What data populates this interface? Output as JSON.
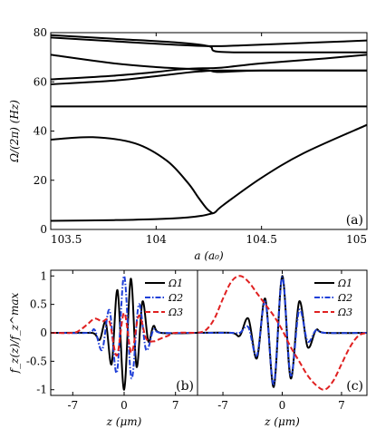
{
  "chart_data": [
    {
      "type": "line",
      "panel_label": "(a)",
      "xlabel": "a (a₀)",
      "ylabel": "Ω/(2π) (Hz)",
      "xlim": [
        103.5,
        105
      ],
      "ylim": [
        0,
        80
      ],
      "x_ticks": [
        "103.5",
        "104",
        "104.5",
        "105"
      ],
      "y_ticks": [
        "0",
        "20",
        "40",
        "60",
        "80"
      ],
      "series": [
        {
          "x": [
            103.5,
            103.8,
            104.0,
            104.15,
            104.22,
            104.26,
            104.28,
            104.32,
            104.5,
            104.7,
            105.0
          ],
          "y": [
            3.5,
            3.8,
            4.2,
            4.9,
            5.6,
            6.4,
            7.0,
            10.0,
            21.0,
            31.0,
            42.5
          ]
        },
        {
          "x": [
            103.5,
            103.7,
            103.9,
            104.05,
            104.15,
            104.2,
            104.24,
            104.27
          ],
          "y": [
            36.5,
            37.5,
            35.0,
            28.0,
            19.0,
            13.0,
            8.5,
            6.4
          ]
        },
        {
          "x": [
            103.5,
            105.0
          ],
          "y": [
            50.0,
            50.0
          ]
        },
        {
          "x": [
            103.5,
            103.8,
            104.0,
            104.15,
            104.22,
            104.26,
            104.3,
            104.5,
            105.0
          ],
          "y": [
            59.0,
            60.5,
            62.3,
            63.8,
            64.3,
            64.5,
            64.6,
            64.6,
            64.6
          ]
        },
        {
          "x": [
            103.5,
            103.8,
            104.0,
            104.1,
            104.2,
            104.3,
            104.5,
            104.8,
            105.0
          ],
          "y": [
            61.0,
            62.5,
            64.0,
            65.0,
            65.5,
            65.7,
            67.5,
            69.5,
            71.0
          ]
        },
        {
          "x": [
            103.5,
            103.8,
            104.0,
            104.15,
            104.25,
            104.3,
            104.5,
            105.0
          ],
          "y": [
            71.0,
            67.5,
            66.0,
            65.3,
            64.6,
            64.0,
            64.6,
            64.6
          ]
        },
        {
          "x": [
            103.5,
            103.8,
            104.1,
            104.26,
            104.4,
            104.7,
            105.0
          ],
          "y": [
            78.0,
            76.5,
            75.0,
            74.5,
            74.8,
            75.8,
            76.8
          ]
        },
        {
          "x": [
            103.5,
            103.8,
            104.1,
            104.25,
            104.3,
            104.6,
            105.0
          ],
          "y": [
            79.0,
            77.5,
            76.0,
            74.5,
            72.2,
            72.0,
            72.0
          ]
        }
      ]
    },
    {
      "type": "line",
      "panel_label": "(b)",
      "xlabel": "z (μm)",
      "ylabel": "f_z(z)/f_z^max",
      "xlim": [
        -10,
        10
      ],
      "ylim": [
        -1.1,
        1.1
      ],
      "x_ticks": [
        "-7",
        "0",
        "7"
      ],
      "y_ticks": [
        "-1",
        "-0.5",
        "0",
        "0.5",
        "1"
      ],
      "series": [
        {
          "name": "Ω1",
          "color": "#000000",
          "dash": "solid",
          "x": [
            -10,
            -5,
            -4,
            -3.3,
            -2.5,
            -1.7,
            -0.9,
            0,
            0.9,
            1.7,
            2.5,
            3.3,
            4,
            5,
            10
          ],
          "y": [
            0,
            0,
            -0.02,
            -0.12,
            0.18,
            -0.55,
            0.75,
            -1.0,
            0.95,
            -0.6,
            0.55,
            -0.15,
            0.12,
            0,
            0
          ]
        },
        {
          "name": "Ω2",
          "color": "#1f3fd8",
          "dash": "dash-dot",
          "x": [
            -10,
            -5,
            -4,
            -3,
            -2,
            -1,
            0,
            1,
            2,
            3,
            4,
            5,
            10
          ],
          "y": [
            0,
            0,
            0.05,
            -0.3,
            0.4,
            -0.7,
            1.0,
            -0.8,
            0.5,
            -0.3,
            0.05,
            0,
            0
          ]
        },
        {
          "name": "Ω3",
          "color": "#e02020",
          "dash": "dash",
          "x": [
            -10,
            -7,
            -6,
            -5,
            -4,
            -3,
            -2,
            -1,
            0,
            1,
            2,
            3,
            4,
            5,
            6,
            7,
            10
          ],
          "y": [
            0,
            0,
            0.05,
            0.15,
            0.25,
            0.2,
            0.2,
            -0.4,
            0.35,
            -0.35,
            0.3,
            -0.1,
            -0.15,
            -0.1,
            -0.05,
            0,
            0
          ]
        }
      ],
      "legend": [
        "Ω1",
        "Ω2",
        "Ω3"
      ],
      "legend_position": "top-right"
    },
    {
      "type": "line",
      "panel_label": "(c)",
      "xlabel": "z (μm)",
      "xlim": [
        -10,
        10
      ],
      "ylim": [
        -1.1,
        1.1
      ],
      "x_ticks": [
        "-7",
        "0",
        "7"
      ],
      "series": [
        {
          "name": "Ω1",
          "color": "#000000",
          "dash": "solid",
          "x": [
            -10,
            -6,
            -5,
            -4,
            -3,
            -2,
            -1,
            0,
            1,
            2,
            3,
            4,
            5,
            10
          ],
          "y": [
            0,
            0,
            -0.05,
            0.25,
            -0.45,
            0.6,
            -0.95,
            1.0,
            -0.8,
            0.55,
            -0.25,
            0.05,
            0,
            0
          ]
        },
        {
          "name": "Ω2",
          "color": "#1f3fd8",
          "dash": "dash-dot",
          "x": [
            -10,
            -6,
            -5,
            -4,
            -3,
            -2,
            -1,
            0,
            1,
            2,
            3,
            4,
            5,
            10
          ],
          "y": [
            0,
            0,
            0,
            0.1,
            -0.4,
            0.55,
            -0.9,
            0.98,
            -0.75,
            0.4,
            -0.15,
            0.05,
            0,
            0
          ]
        },
        {
          "name": "Ω3",
          "color": "#e02020",
          "dash": "dash",
          "x": [
            -10,
            -9,
            -8,
            -7,
            -6,
            -5,
            -4,
            -3,
            -2,
            -1,
            0,
            1,
            2,
            3,
            4,
            5,
            6,
            7,
            8,
            9,
            10
          ],
          "y": [
            0,
            0.05,
            0.25,
            0.6,
            0.9,
            1.0,
            0.9,
            0.7,
            0.5,
            0.3,
            0.05,
            -0.25,
            -0.5,
            -0.75,
            -0.92,
            -1.0,
            -0.85,
            -0.55,
            -0.25,
            -0.05,
            0
          ]
        }
      ],
      "legend": [
        "Ω1",
        "Ω2",
        "Ω3"
      ],
      "legend_position": "top-right"
    }
  ]
}
